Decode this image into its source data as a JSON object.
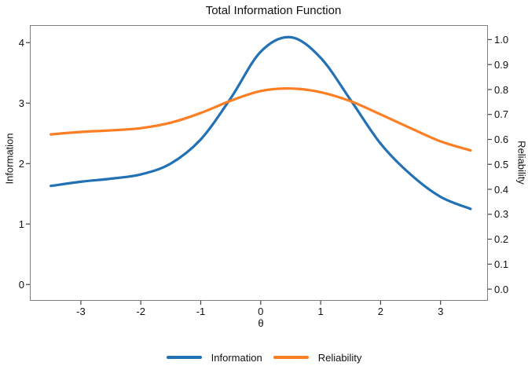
{
  "title": "Total Information Function",
  "colors": {
    "information_line": "#2271b5",
    "reliability_line": "#fd7e23",
    "frame": "#7f7f7f",
    "tick": "#404040",
    "text": "#111111",
    "background": "#ffffff"
  },
  "chart_data": {
    "type": "line",
    "title": "Total Information Function",
    "xlabel": "θ",
    "ylabel_left": "Information",
    "ylabel_right": "Reliability",
    "grid": false,
    "legend_position": "bottom",
    "x": [
      -3.5,
      -3.0,
      -2.5,
      -2.0,
      -1.5,
      -1.0,
      -0.5,
      0.0,
      0.5,
      1.0,
      1.5,
      2.0,
      2.5,
      3.0,
      3.5
    ],
    "series": [
      {
        "name": "Information",
        "axis": "left",
        "color": "#2271b5",
        "values": [
          1.63,
          1.7,
          1.75,
          1.82,
          2.0,
          2.4,
          3.08,
          3.85,
          4.09,
          3.75,
          3.05,
          2.33,
          1.82,
          1.45,
          1.25
        ]
      },
      {
        "name": "Reliability",
        "axis": "right",
        "color": "#fd7e23",
        "values": [
          0.62,
          0.63,
          0.636,
          0.645,
          0.667,
          0.706,
          0.755,
          0.794,
          0.804,
          0.789,
          0.753,
          0.7,
          0.645,
          0.592,
          0.556
        ]
      }
    ],
    "x_ticks": [
      "-3",
      "-2",
      "-1",
      "0",
      "1",
      "2",
      "3"
    ],
    "left_ticks": [
      "0",
      "1",
      "2",
      "3",
      "4"
    ],
    "right_ticks": [
      "0.0",
      "0.1",
      "0.2",
      "0.3",
      "0.4",
      "0.5",
      "0.6",
      "0.7",
      "0.8",
      "0.9",
      "1.0"
    ],
    "x_range": [
      -3.85,
      3.79
    ],
    "left_range": [
      -0.27,
      4.29
    ],
    "right_range": [
      -0.047,
      1.058
    ],
    "x_data_range": [
      -3.5,
      3.5
    ]
  }
}
